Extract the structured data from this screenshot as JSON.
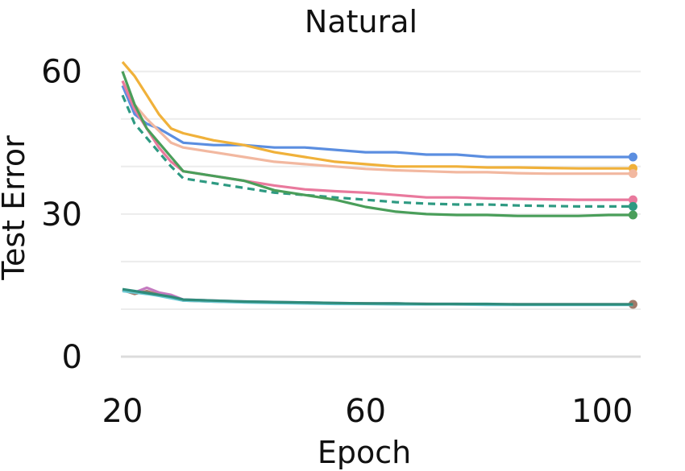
{
  "chart_data": {
    "type": "line",
    "title": "Natural",
    "xlabel": "Epoch",
    "ylabel": "Test Error",
    "xlim": [
      20,
      105
    ],
    "ylim": [
      0,
      63
    ],
    "xticks": [
      20,
      60,
      100
    ],
    "yticks": [
      0,
      30,
      60
    ],
    "grid": true,
    "series": [
      {
        "color": "#5b8ee0",
        "dashed": false,
        "marker": true,
        "x": [
          20,
          22,
          24,
          26,
          28,
          30,
          35,
          40,
          45,
          50,
          55,
          60,
          65,
          70,
          75,
          80,
          85,
          90,
          95,
          100,
          104
        ],
        "y": [
          57,
          51,
          49,
          48,
          46.5,
          45,
          44.5,
          44.5,
          44,
          44,
          43.5,
          43,
          43,
          42.5,
          42.5,
          42,
          42,
          42,
          42,
          42,
          42
        ]
      },
      {
        "color": "#f0b13a",
        "dashed": false,
        "marker": true,
        "x": [
          20,
          22,
          24,
          26,
          28,
          30,
          35,
          40,
          45,
          50,
          55,
          60,
          65,
          70,
          75,
          80,
          85,
          90,
          95,
          100,
          104
        ],
        "y": [
          62,
          59,
          55,
          51,
          48,
          47,
          45.5,
          44.5,
          43,
          42,
          41,
          40.5,
          40,
          40,
          40,
          39.8,
          39.8,
          39.7,
          39.6,
          39.6,
          39.6
        ]
      },
      {
        "color": "#f2b8a0",
        "dashed": false,
        "marker": true,
        "x": [
          20,
          22,
          24,
          26,
          28,
          30,
          35,
          40,
          45,
          50,
          55,
          60,
          65,
          70,
          75,
          80,
          85,
          90,
          95,
          100,
          104
        ],
        "y": [
          58,
          53,
          50,
          47.5,
          45,
          44,
          43,
          42,
          41,
          40.5,
          40,
          39.5,
          39.2,
          39,
          38.8,
          38.8,
          38.6,
          38.5,
          38.5,
          38.5,
          38.5
        ]
      },
      {
        "color": "#e9799d",
        "dashed": false,
        "marker": true,
        "x": [
          20,
          22,
          24,
          26,
          28,
          30,
          35,
          40,
          45,
          50,
          55,
          60,
          65,
          70,
          75,
          80,
          85,
          90,
          95,
          100,
          104
        ],
        "y": [
          58,
          52,
          48,
          44,
          41,
          39,
          38,
          37,
          36,
          35.2,
          34.8,
          34.5,
          34,
          33.5,
          33.5,
          33.3,
          33.2,
          33.1,
          33,
          33,
          33
        ]
      },
      {
        "color": "#2e9a82",
        "dashed": true,
        "marker": true,
        "x": [
          20,
          22,
          24,
          26,
          28,
          30,
          35,
          40,
          45,
          50,
          55,
          60,
          65,
          70,
          75,
          80,
          85,
          90,
          95,
          100,
          104
        ],
        "y": [
          55,
          49,
          46,
          43,
          40,
          37.5,
          36.5,
          35.5,
          34.5,
          34,
          33.5,
          33,
          32.5,
          32.2,
          32,
          32,
          31.8,
          31.7,
          31.6,
          31.6,
          31.6
        ]
      },
      {
        "color": "#4a9e5a",
        "dashed": false,
        "marker": true,
        "x": [
          20,
          22,
          24,
          26,
          28,
          30,
          35,
          40,
          45,
          50,
          55,
          60,
          65,
          70,
          75,
          80,
          85,
          90,
          95,
          100,
          104
        ],
        "y": [
          60,
          53,
          48,
          45,
          42,
          39,
          38,
          37,
          35,
          34,
          33,
          31.5,
          30.5,
          30,
          29.8,
          29.8,
          29.6,
          29.6,
          29.6,
          29.8,
          29.8
        ]
      },
      {
        "color": "#c47ac0",
        "dashed": false,
        "marker": false,
        "x": [
          20,
          22,
          24,
          26,
          28,
          30,
          35,
          40,
          45,
          50,
          55,
          60,
          65,
          70,
          75,
          80,
          85,
          90,
          95,
          100,
          104
        ],
        "y": [
          14,
          13.5,
          14.5,
          13.5,
          13,
          12,
          11.8,
          11.6,
          11.5,
          11.4,
          11.3,
          11.2,
          11.2,
          11.1,
          11.1,
          11,
          11,
          11,
          11,
          11,
          11
        ]
      },
      {
        "color": "#a07a6a",
        "dashed": false,
        "marker": true,
        "x": [
          20,
          22,
          24,
          26,
          28,
          30,
          35,
          40,
          45,
          50,
          55,
          60,
          65,
          70,
          75,
          80,
          85,
          90,
          95,
          100,
          104
        ],
        "y": [
          14,
          13.2,
          13.8,
          13,
          12.5,
          11.8,
          11.6,
          11.5,
          11.4,
          11.3,
          11.2,
          11.2,
          11.1,
          11.1,
          11,
          11,
          11,
          11,
          11,
          11,
          11
        ]
      },
      {
        "color": "#6cc9d4",
        "dashed": false,
        "marker": false,
        "x": [
          20,
          22,
          24,
          26,
          28,
          30,
          35,
          40,
          45,
          50,
          55,
          60,
          65,
          70,
          75,
          80,
          85,
          90,
          95,
          100,
          104
        ],
        "y": [
          13.8,
          13.5,
          13.2,
          12.8,
          12.3,
          11.8,
          11.6,
          11.4,
          11.3,
          11.2,
          11.1,
          11.1,
          11,
          11,
          11,
          10.9,
          10.9,
          10.9,
          10.9,
          10.9,
          10.9
        ]
      },
      {
        "color": "#2e8b7a",
        "dashed": false,
        "marker": false,
        "x": [
          20,
          22,
          24,
          26,
          28,
          30,
          35,
          40,
          45,
          50,
          55,
          60,
          65,
          70,
          75,
          80,
          85,
          90,
          95,
          100,
          104
        ],
        "y": [
          14.2,
          13.8,
          13.4,
          13,
          12.6,
          12,
          11.8,
          11.6,
          11.5,
          11.4,
          11.3,
          11.2,
          11.2,
          11.1,
          11.1,
          11.1,
          11,
          11,
          11,
          11,
          11
        ]
      }
    ]
  }
}
